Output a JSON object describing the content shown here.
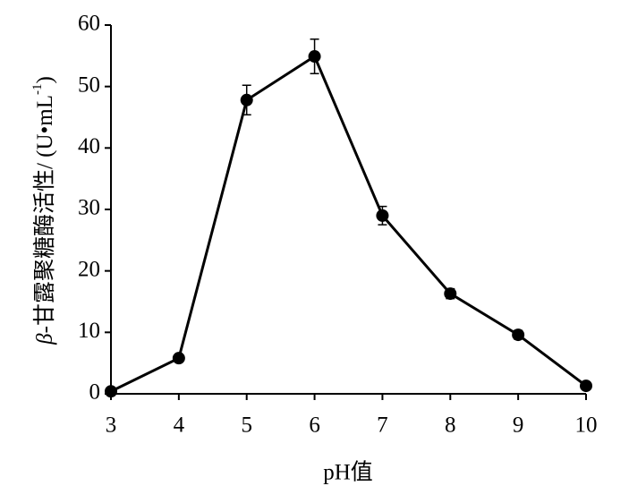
{
  "chart_data": {
    "type": "line",
    "x": [
      3,
      4,
      5,
      6,
      7,
      8,
      9,
      10
    ],
    "series": [
      {
        "color": "#000000",
        "values": [
          0.4,
          5.8,
          47.8,
          54.9,
          29,
          16.3,
          9.6,
          1.3
        ],
        "errors": [
          0.3,
          0.5,
          2.4,
          2.8,
          1.5,
          0.8,
          0.7,
          0.5
        ]
      }
    ],
    "xlim": [
      3,
      10
    ],
    "xticks": [
      3,
      4,
      5,
      6,
      7,
      8,
      9,
      10
    ],
    "ylim": [
      0,
      60
    ],
    "yticks": [
      0,
      10,
      20,
      30,
      40,
      50,
      60
    ],
    "xlabel": "pH值",
    "ylabel": [
      "β",
      "-甘露聚糖酶活性/ (U•mL",
      "-1",
      ")"
    ]
  }
}
